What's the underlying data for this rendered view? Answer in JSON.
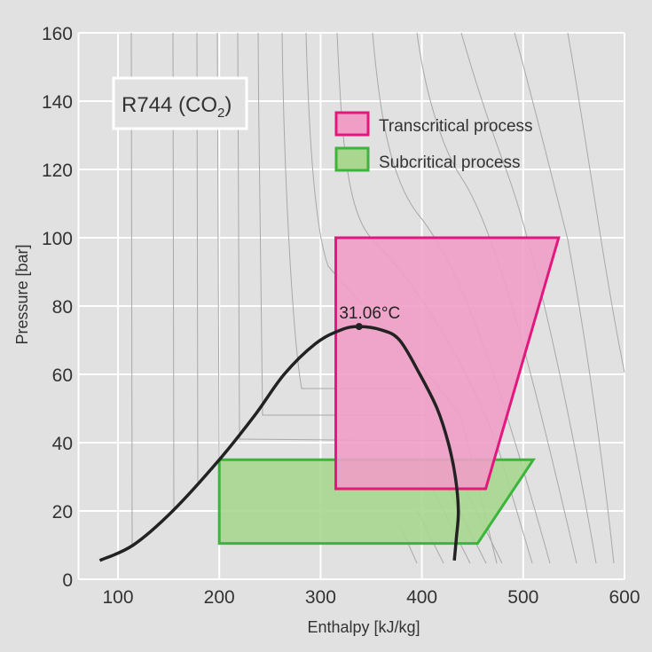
{
  "chart_data": {
    "type": "line",
    "title": "R744 (CO2)",
    "title_main": "R744 (CO",
    "title_sub": "2",
    "title_end": ")",
    "xlabel": "Enthalpy [kJ/kg]",
    "ylabel": "Pressure [bar]",
    "xlim": [
      61,
      600
    ],
    "ylim": [
      0,
      160
    ],
    "xticks": [
      "100",
      "200",
      "300",
      "400",
      "500",
      "600"
    ],
    "yticks": [
      "0",
      "20",
      "40",
      "60",
      "80",
      "100",
      "120",
      "140",
      "160"
    ],
    "grid": true,
    "legend_position": "top-right",
    "critical_point": {
      "h": 338,
      "p": 74,
      "label": "31.06°C"
    },
    "saturation_curve": {
      "h": [
        82,
        115,
        154,
        200,
        235,
        264,
        295,
        320,
        338,
        360,
        378,
        398,
        415,
        426,
        433,
        436,
        434,
        432
      ],
      "p": [
        5.5,
        10,
        20,
        35,
        48,
        60,
        69,
        73,
        74,
        73,
        70,
        60,
        50,
        40,
        30,
        20,
        12,
        5.5
      ]
    },
    "series": [
      {
        "name": "Transcritical process",
        "color": "#e2187e",
        "fill": "#f09ec6",
        "h": [
          315,
          463,
          535,
          315
        ],
        "p": [
          26.5,
          26.5,
          100,
          100
        ]
      },
      {
        "name": "Subcritical process",
        "color": "#3db43a",
        "fill": "#a9d78f",
        "h": [
          200,
          455,
          510,
          200
        ],
        "p": [
          10.5,
          10.5,
          35,
          35
        ]
      }
    ]
  }
}
